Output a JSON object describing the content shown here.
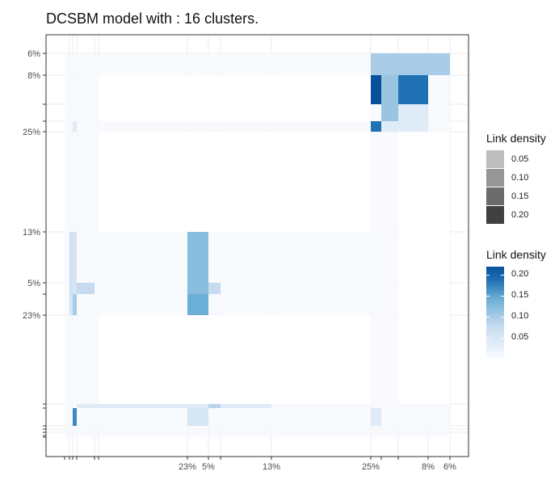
{
  "title": "DCSBM model with : 16 clusters.",
  "chart_data": {
    "type": "heatmap",
    "title": "DCSBM model with : 16 clusters.",
    "n_clusters": 16,
    "row_labels": [
      "6%",
      "8%",
      "25%",
      "13%",
      "5%",
      "23%"
    ],
    "col_labels": [
      "23%",
      "5%",
      "13%",
      "25%",
      "8%",
      "6%"
    ],
    "legends": [
      {
        "title": "Link density",
        "kind": "size-swatches",
        "values": [
          "0.05",
          "0.10",
          "0.15",
          "0.20"
        ],
        "colors": [
          "#bdbdbd",
          "#969696",
          "#6b6b6b",
          "#404040"
        ]
      },
      {
        "title": "Link density",
        "kind": "colorbar",
        "values": [
          "0.20",
          "0.15",
          "0.10",
          "0.05"
        ],
        "range": [
          0,
          0.22
        ],
        "colors": [
          "#f7fbff",
          "#c6dbef",
          "#6baed6",
          "#2171b5",
          "#08519c"
        ]
      }
    ],
    "blocks": [
      {
        "r": 0,
        "c": 10,
        "v": 0.08
      },
      {
        "r": 0,
        "c": 11,
        "v": 0.08
      },
      {
        "r": 0,
        "c": 12,
        "v": 0.08
      },
      {
        "r": 0,
        "c": 13,
        "v": 0.08
      },
      {
        "r": 1,
        "c": 10,
        "v": 0.22
      },
      {
        "r": 1,
        "c": 11,
        "v": 0.09
      },
      {
        "r": 1,
        "c": 12,
        "v": 0.17
      },
      {
        "r": 2,
        "c": 11,
        "v": 0.09
      },
      {
        "r": 2,
        "c": 12,
        "v": 0.03
      },
      {
        "r": 3,
        "c": 2,
        "v": 0.03
      },
      {
        "r": 3,
        "c": 10,
        "v": 0.17
      },
      {
        "r": 3,
        "c": 11,
        "v": 0.03
      },
      {
        "r": 3,
        "c": 12,
        "v": 0.03
      },
      {
        "r": 5,
        "c": 1,
        "v": 0.05
      },
      {
        "r": 5,
        "c": 2,
        "v": 0.04
      },
      {
        "r": 5,
        "c": 6,
        "v": 0.1
      },
      {
        "r": 6,
        "c": 1,
        "v": 0.05
      },
      {
        "r": 6,
        "c": 2,
        "v": 0.04
      },
      {
        "r": 6,
        "c": 3,
        "v": 0.06
      },
      {
        "r": 6,
        "c": 6,
        "v": 0.1
      },
      {
        "r": 6,
        "c": 7,
        "v": 0.06
      },
      {
        "r": 7,
        "c": 1,
        "v": 0.04
      },
      {
        "r": 7,
        "c": 2,
        "v": 0.08
      },
      {
        "r": 7,
        "c": 6,
        "v": 0.12
      },
      {
        "r": 9,
        "c": 3,
        "v": 0.03
      },
      {
        "r": 9,
        "c": 4,
        "v": 0.03
      },
      {
        "r": 9,
        "c": 5,
        "v": 0.03
      },
      {
        "r": 9,
        "c": 6,
        "v": 0.03
      },
      {
        "r": 9,
        "c": 7,
        "v": 0.07
      },
      {
        "r": 9,
        "c": 8,
        "v": 0.03
      },
      {
        "r": 10,
        "c": 2,
        "v": 0.15
      },
      {
        "r": 10,
        "c": 6,
        "v": 0.04
      },
      {
        "r": 10,
        "c": 10,
        "v": 0.03
      }
    ]
  }
}
